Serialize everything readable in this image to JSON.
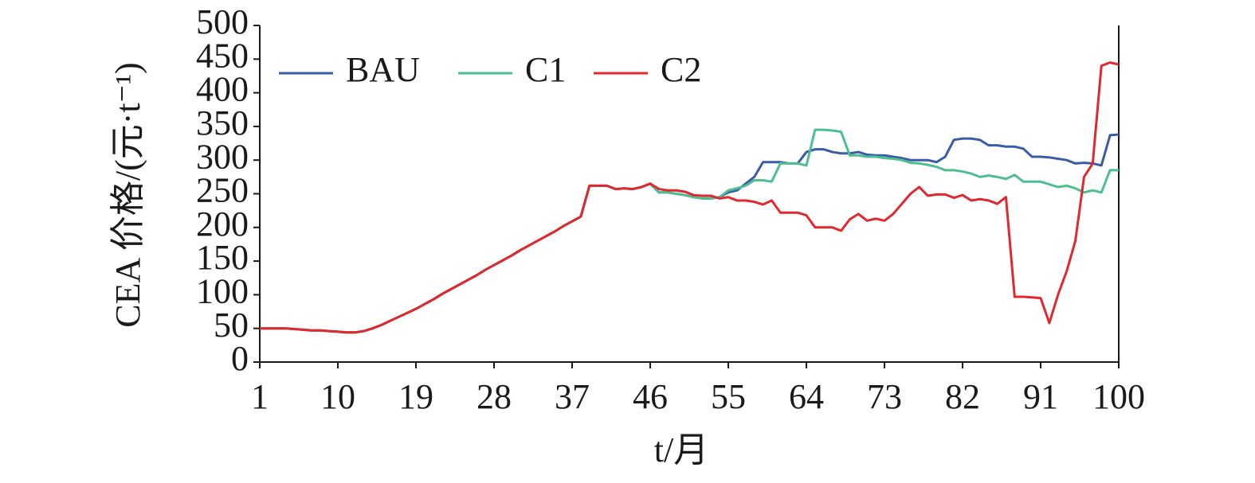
{
  "chart_data": {
    "type": "line",
    "ylabel": "CEA 价格/(元·t⁻¹)",
    "xlabel": "t/月",
    "x": [
      1,
      2,
      3,
      4,
      5,
      6,
      7,
      8,
      9,
      10,
      11,
      12,
      13,
      14,
      15,
      16,
      17,
      18,
      19,
      20,
      21,
      22,
      23,
      24,
      25,
      26,
      27,
      28,
      29,
      30,
      31,
      32,
      33,
      34,
      35,
      36,
      37,
      38,
      39,
      40,
      41,
      42,
      43,
      44,
      45,
      46,
      47,
      48,
      49,
      50,
      51,
      52,
      53,
      54,
      55,
      56,
      57,
      58,
      59,
      60,
      61,
      62,
      63,
      64,
      65,
      66,
      67,
      68,
      69,
      70,
      71,
      72,
      73,
      74,
      75,
      76,
      77,
      78,
      79,
      80,
      81,
      82,
      83,
      84,
      85,
      86,
      87,
      88,
      89,
      90,
      91,
      92,
      93,
      94,
      95,
      96,
      97,
      98,
      99,
      100
    ],
    "series": [
      {
        "name": "BAU",
        "color": "#3a5ba8",
        "values": [
          50,
          50,
          50,
          50,
          49,
          48,
          47,
          47,
          46,
          45,
          44,
          44,
          46,
          50,
          55,
          61,
          67,
          73,
          79,
          86,
          93,
          101,
          108,
          115,
          122,
          129,
          137,
          144,
          151,
          158,
          166,
          173,
          180,
          187,
          194,
          202,
          209,
          216,
          262,
          262,
          262,
          257,
          258,
          257,
          260,
          265,
          252,
          252,
          250,
          248,
          245,
          243,
          243,
          245,
          252,
          255,
          265,
          275,
          297,
          297,
          297,
          295,
          295,
          312,
          316,
          316,
          312,
          310,
          310,
          312,
          308,
          307,
          307,
          305,
          303,
          300,
          300,
          300,
          297,
          305,
          330,
          332,
          332,
          330,
          322,
          322,
          320,
          320,
          317,
          305,
          305,
          304,
          302,
          300,
          295,
          296,
          295,
          292,
          337,
          338
        ]
      },
      {
        "name": "C1",
        "color": "#4dbf8e",
        "values": [
          50,
          50,
          50,
          50,
          49,
          48,
          47,
          47,
          46,
          45,
          44,
          44,
          46,
          50,
          55,
          61,
          67,
          73,
          79,
          86,
          93,
          101,
          108,
          115,
          122,
          129,
          137,
          144,
          151,
          158,
          166,
          173,
          180,
          187,
          194,
          202,
          209,
          216,
          262,
          262,
          262,
          257,
          258,
          257,
          260,
          265,
          252,
          252,
          250,
          248,
          245,
          243,
          243,
          245,
          255,
          258,
          262,
          270,
          270,
          268,
          295,
          295,
          295,
          292,
          345,
          345,
          344,
          342,
          307,
          307,
          305,
          305,
          303,
          302,
          300,
          296,
          295,
          293,
          290,
          285,
          285,
          283,
          280,
          275,
          277,
          275,
          272,
          278,
          268,
          268,
          268,
          264,
          260,
          262,
          258,
          252,
          255,
          252,
          285,
          285
        ]
      },
      {
        "name": "C2",
        "color": "#e0282e",
        "values": [
          50,
          50,
          50,
          50,
          49,
          48,
          47,
          47,
          46,
          45,
          44,
          44,
          46,
          50,
          55,
          61,
          67,
          73,
          79,
          86,
          93,
          101,
          108,
          115,
          122,
          129,
          137,
          144,
          151,
          158,
          166,
          173,
          180,
          187,
          194,
          202,
          209,
          216,
          262,
          262,
          262,
          257,
          258,
          257,
          260,
          265,
          257,
          255,
          255,
          253,
          248,
          247,
          247,
          243,
          245,
          240,
          240,
          238,
          234,
          240,
          222,
          222,
          222,
          218,
          200,
          200,
          200,
          195,
          212,
          220,
          210,
          213,
          210,
          220,
          235,
          250,
          260,
          247,
          249,
          249,
          244,
          248,
          240,
          242,
          240,
          235,
          245,
          97,
          97,
          96,
          95,
          58,
          100,
          135,
          180,
          275,
          295,
          440,
          445,
          442
        ]
      }
    ],
    "xlim": [
      1,
      100
    ],
    "xticks": [
      1,
      10,
      19,
      28,
      37,
      46,
      55,
      64,
      73,
      82,
      91,
      100
    ],
    "ylim": [
      0,
      500
    ],
    "yticks": [
      0,
      50,
      100,
      150,
      200,
      250,
      300,
      350,
      400,
      450,
      500
    ],
    "legend": "upper left",
    "grid": false
  }
}
